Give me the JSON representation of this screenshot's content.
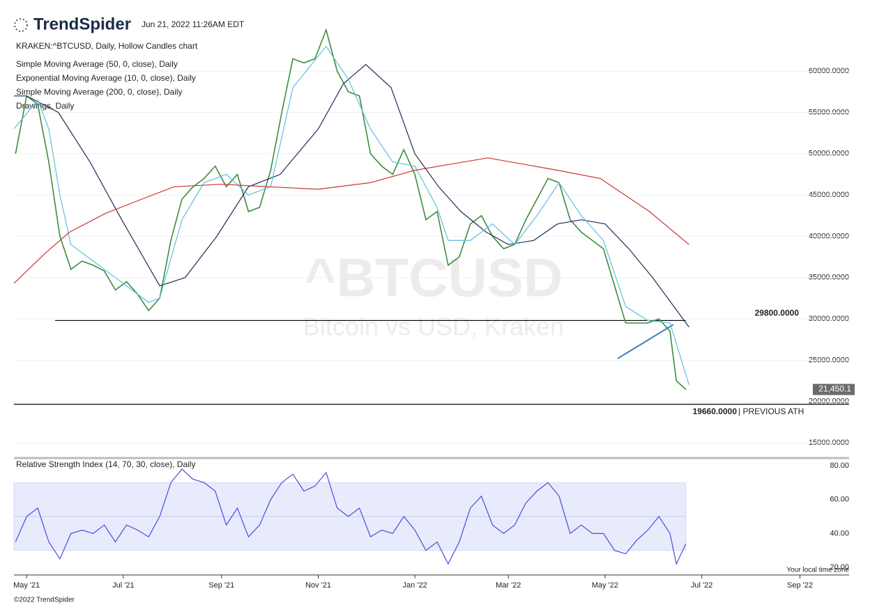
{
  "header": {
    "brand": "TrendSpider",
    "timestamp": "Jun 21, 2022 11:26AM EDT"
  },
  "footer": {
    "copyright": "©2022 TrendSpider",
    "timezone": "Your local time zone"
  },
  "watermark": {
    "title": "^BTCUSD",
    "subtitle": "Bitcoin vs USD, Kraken"
  },
  "chart_data": [
    {
      "type": "line",
      "xlim": [
        -8,
        519
      ],
      "ylim": [
        13400,
        67100
      ],
      "yticks": [
        {
          "value": 15000,
          "label": "15000.0000"
        },
        {
          "value": 20000,
          "label": "20000.0000"
        },
        {
          "value": 25000,
          "label": "25000.0000"
        },
        {
          "value": 30000,
          "label": "30000.0000"
        },
        {
          "value": 35000,
          "label": "35000.0000"
        },
        {
          "value": 40000,
          "label": "40000.0000"
        },
        {
          "value": 45000,
          "label": "45000.0000"
        },
        {
          "value": 50000,
          "label": "50000.0000"
        },
        {
          "value": 55000,
          "label": "55000.0000"
        },
        {
          "value": 60000,
          "label": "60000.0000"
        }
      ],
      "grid": true,
      "series": [
        {
          "name": "KRAKEN:^BTCUSD, Daily, Hollow Candles chart",
          "color": "#3d8c3d",
          "x": [
            -7,
            0,
            7,
            14,
            21,
            28,
            35,
            42,
            49,
            56,
            63,
            70,
            77,
            84,
            91,
            98,
            105,
            112,
            119,
            126,
            133,
            140,
            147,
            154,
            161,
            168,
            175,
            182,
            189,
            196,
            203,
            210,
            217,
            224,
            231,
            238,
            245,
            252,
            259,
            266,
            273,
            280,
            287,
            294,
            301,
            308,
            315,
            322,
            329,
            336,
            343,
            350,
            357,
            364,
            371,
            378,
            385,
            392,
            399,
            406,
            410,
            416
          ],
          "values": [
            50000,
            57000,
            56000,
            49000,
            40000,
            36000,
            37000,
            36500,
            35800,
            33500,
            34500,
            33000,
            31000,
            32500,
            39500,
            44500,
            46000,
            47000,
            48500,
            46000,
            47500,
            43000,
            43500,
            48000,
            55000,
            61500,
            61000,
            61500,
            65000,
            60000,
            57500,
            57000,
            50000,
            48500,
            47500,
            50500,
            47500,
            42000,
            43000,
            36500,
            37500,
            41500,
            42500,
            40000,
            38500,
            39000,
            42000,
            44500,
            47000,
            46500,
            42000,
            40500,
            39500,
            38500,
            34000,
            29500,
            29500,
            29500,
            30000,
            28500,
            22500,
            21450
          ]
        },
        {
          "name": "Simple Moving Average (50, 0, close), Daily",
          "color": "#1f2d57",
          "x": [
            -8,
            0,
            20,
            40,
            60,
            84,
            100,
            120,
            140,
            160,
            184,
            200,
            214,
            230,
            245,
            260,
            274,
            290,
            304,
            320,
            335,
            350,
            365,
            380,
            395,
            418
          ],
          "values": [
            57000,
            57000,
            55000,
            49000,
            42000,
            34000,
            35000,
            40000,
            46000,
            47500,
            53000,
            58500,
            60800,
            58000,
            50000,
            46000,
            43000,
            40500,
            39000,
            39500,
            41500,
            42000,
            41500,
            38500,
            35000,
            29000
          ]
        },
        {
          "name": "Exponential Moving Average (10, 0, close), Daily",
          "color": "#5bc0de",
          "x": [
            -8,
            7,
            14,
            21,
            28,
            42,
            56,
            77,
            84,
            98,
            112,
            126,
            140,
            154,
            168,
            189,
            203,
            217,
            231,
            245,
            259,
            266,
            280,
            294,
            308,
            322,
            336,
            350,
            364,
            378,
            392,
            406,
            418
          ],
          "values": [
            53000,
            56500,
            53000,
            45000,
            39000,
            37000,
            35000,
            32000,
            32500,
            42000,
            46500,
            47500,
            45000,
            46000,
            58000,
            63000,
            59000,
            53000,
            49000,
            48500,
            43500,
            39500,
            39500,
            41500,
            39000,
            42500,
            46500,
            42500,
            39500,
            31500,
            29800,
            29500,
            22000
          ]
        },
        {
          "name": "Simple Moving Average (200, 0, close), Daily",
          "color": "#cc3333",
          "x": [
            -8,
            12,
            27,
            50,
            70,
            93,
            123,
            153,
            184,
            217,
            245,
            291,
            335,
            362,
            393,
            418
          ],
          "values": [
            34300,
            38000,
            40500,
            42800,
            44300,
            46000,
            46300,
            46000,
            45700,
            46500,
            48000,
            49500,
            48000,
            47000,
            43000,
            39000
          ]
        }
      ],
      "drawings": {
        "name": "Drawings, Daily",
        "color": "#000000",
        "hlines": [
          {
            "value": 29800,
            "label": "29800.0000",
            "xrange": [
              18,
              416
            ]
          },
          {
            "value": 19660,
            "label": "19660.0000",
            "note": "| PREVIOUS ATH"
          }
        ],
        "trendline": {
          "x": [
            373,
            408
          ],
          "values": [
            25200,
            29300
          ],
          "color": "#3a7fc1"
        }
      },
      "last": {
        "value": 21450.1,
        "label": "21,450.1"
      }
    },
    {
      "type": "line",
      "xlim": [
        -8,
        519
      ],
      "ylim": [
        15.5,
        83.7
      ],
      "yticks": [
        {
          "value": 20,
          "label": "20.00"
        },
        {
          "value": 40,
          "label": "40.00"
        },
        {
          "value": 60,
          "label": "60.00"
        },
        {
          "value": 80,
          "label": "80.00"
        }
      ],
      "band": [
        30,
        70
      ],
      "midline": 50,
      "xticks": [
        {
          "value": 0,
          "label": "May '21"
        },
        {
          "value": 61,
          "label": "Jul '21"
        },
        {
          "value": 123,
          "label": "Sep '21"
        },
        {
          "value": 184,
          "label": "Nov '21"
        },
        {
          "value": 245,
          "label": "Jan '22"
        },
        {
          "value": 304,
          "label": "Mar '22"
        },
        {
          "value": 365,
          "label": "May '22"
        },
        {
          "value": 426,
          "label": "Jul '22"
        },
        {
          "value": 488,
          "label": "Sep '22"
        }
      ],
      "series": [
        {
          "name": "Relative Strength Index (14, 70, 30, close), Daily",
          "color": "#4a4ae0",
          "x": [
            -7,
            0,
            7,
            14,
            21,
            28,
            35,
            42,
            49,
            56,
            63,
            70,
            77,
            84,
            91,
            98,
            105,
            112,
            119,
            126,
            133,
            140,
            147,
            154,
            161,
            168,
            175,
            182,
            189,
            196,
            203,
            210,
            217,
            224,
            231,
            238,
            245,
            252,
            259,
            266,
            273,
            280,
            287,
            294,
            301,
            308,
            315,
            322,
            329,
            336,
            343,
            350,
            357,
            364,
            371,
            378,
            385,
            392,
            399,
            406,
            410,
            416
          ],
          "values": [
            35,
            50,
            55,
            35,
            25,
            40,
            42,
            40,
            45,
            35,
            45,
            42,
            38,
            50,
            70,
            78,
            72,
            70,
            65,
            45,
            55,
            38,
            45,
            60,
            70,
            75,
            65,
            68,
            76,
            55,
            50,
            55,
            38,
            42,
            40,
            50,
            42,
            30,
            35,
            22,
            35,
            55,
            62,
            45,
            40,
            45,
            58,
            65,
            70,
            62,
            40,
            45,
            40,
            40,
            30,
            28,
            36,
            42,
            50,
            40,
            22,
            34
          ]
        }
      ]
    }
  ]
}
